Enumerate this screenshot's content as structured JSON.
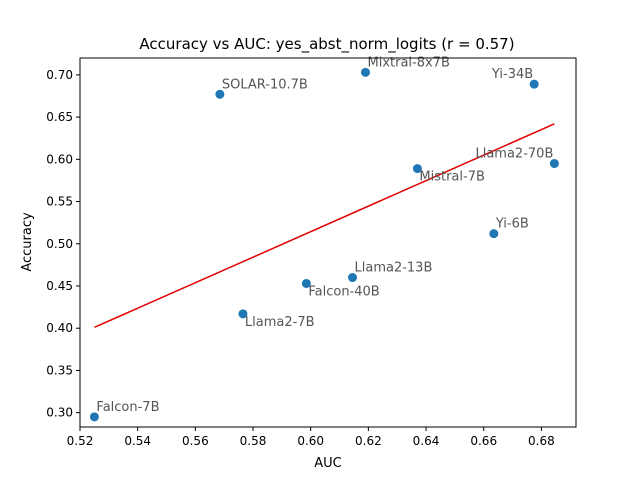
{
  "chart_data": {
    "type": "scatter",
    "title": "Accuracy vs AUC: yes_abst_norm_logits (r = 0.57)",
    "xlabel": "AUC",
    "ylabel": "Accuracy",
    "xlim": [
      0.52,
      0.692
    ],
    "ylim": [
      0.283,
      0.72
    ],
    "xticks": [
      "0.52",
      "0.54",
      "0.56",
      "0.58",
      "0.60",
      "0.62",
      "0.64",
      "0.66",
      "0.68"
    ],
    "yticks": [
      "0.30",
      "0.35",
      "0.40",
      "0.45",
      "0.50",
      "0.55",
      "0.60",
      "0.65",
      "0.70"
    ],
    "grid": false,
    "points": [
      {
        "label": "Falcon-7B",
        "x": 0.525,
        "y": 0.295,
        "anchor": "start",
        "dy": -1
      },
      {
        "label": "Llama2-7B",
        "x": 0.5765,
        "y": 0.417,
        "anchor": "start",
        "dy": 1
      },
      {
        "label": "Falcon-40B",
        "x": 0.5985,
        "y": 0.453,
        "anchor": "start",
        "dy": 1
      },
      {
        "label": "Llama2-13B",
        "x": 0.6145,
        "y": 0.46,
        "anchor": "start",
        "dy": -1
      },
      {
        "label": "SOLAR-10.7B",
        "x": 0.5685,
        "y": 0.677,
        "anchor": "start",
        "dy": -1
      },
      {
        "label": "Mixtral-8x7B",
        "x": 0.619,
        "y": 0.703,
        "anchor": "start",
        "dy": -1
      },
      {
        "label": "Mistral-7B",
        "x": 0.637,
        "y": 0.589,
        "anchor": "start",
        "dy": 1
      },
      {
        "label": "Yi-6B",
        "x": 0.6635,
        "y": 0.512,
        "anchor": "start",
        "dy": -1
      },
      {
        "label": "Yi-34B",
        "x": 0.6775,
        "y": 0.689,
        "anchor": "end",
        "dy": -1
      },
      {
        "label": "Llama2-70B",
        "x": 0.6845,
        "y": 0.595,
        "anchor": "end",
        "dy": -1
      }
    ],
    "trendline": {
      "x": [
        0.525,
        0.6845
      ],
      "y": [
        0.401,
        0.642
      ]
    },
    "point_color": "#1f77b4",
    "trend_color": "#e00000"
  }
}
